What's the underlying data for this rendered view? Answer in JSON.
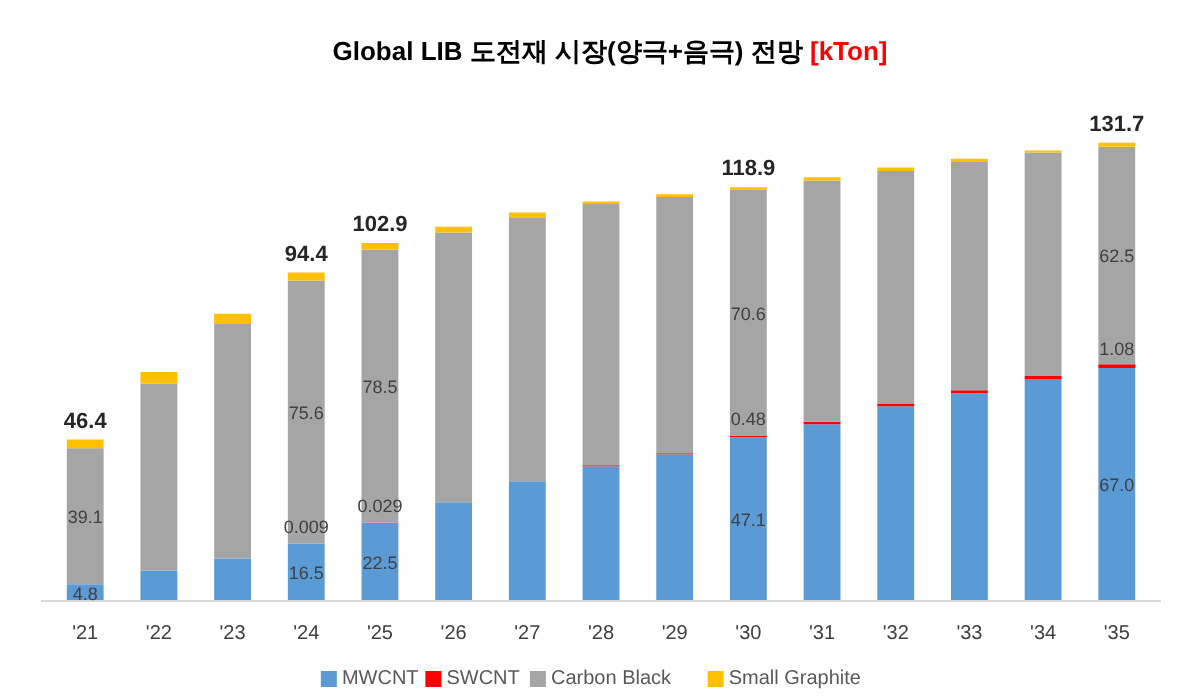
{
  "chart_data": {
    "type": "bar",
    "title": "Global LIB 도전재 시장(양극+음극) 전망",
    "subtitle": "[kTon]",
    "stacked": true,
    "legend": "bottom",
    "grid": false,
    "categories": [
      "'21",
      "'22",
      "'23",
      "'24",
      "'25",
      "'26",
      "'27",
      "'28",
      "'29",
      "'30",
      "'31",
      "'32",
      "'33",
      "'34",
      "'35"
    ],
    "series": [
      {
        "name": "MWCNT",
        "color": "#5b9bd5",
        "values": [
          4.8,
          8.7,
          12.2,
          16.5,
          22.5,
          28.4,
          34.4,
          38.7,
          42.2,
          47.1,
          50.8,
          56.0,
          59.7,
          63.7,
          67.0
        ],
        "value_labels": [
          "4.8",
          null,
          null,
          "16.5",
          "22.5",
          null,
          null,
          null,
          null,
          "47.1",
          null,
          null,
          null,
          null,
          "67.0"
        ]
      },
      {
        "name": "SWCNT",
        "color": "#ff0000",
        "values": [
          0,
          0,
          0,
          0.009,
          0.029,
          null,
          null,
          0.3,
          0.3,
          0.48,
          0.7,
          0.8,
          0.9,
          1.0,
          1.08
        ],
        "value_labels": [
          null,
          null,
          null,
          "0.009",
          "0.029",
          null,
          null,
          null,
          null,
          "0.48",
          null,
          null,
          null,
          null,
          "1.08"
        ]
      },
      {
        "name": "Carbon Black",
        "color": "#a5a5a5",
        "values": [
          39.1,
          53.8,
          67.4,
          75.6,
          78.5,
          77.5,
          75.9,
          75.1,
          73.6,
          70.6,
          69.4,
          66.8,
          65.6,
          64.2,
          62.5
        ],
        "value_labels": [
          "39.1",
          null,
          null,
          "75.6",
          "78.5",
          null,
          null,
          null,
          null,
          "70.6",
          null,
          null,
          null,
          null,
          "62.5"
        ]
      },
      {
        "name": "Small Graphite",
        "color": "#ffc000",
        "values": [
          2.5,
          3.3,
          3.0,
          2.3,
          1.9,
          1.7,
          1.4,
          0.7,
          0.8,
          0.72,
          0.9,
          1.0,
          0.9,
          0.6,
          1.12
        ]
      }
    ],
    "totals": [
      "46.4",
      null,
      null,
      "94.4",
      "102.9",
      null,
      null,
      null,
      null,
      "118.9",
      null,
      null,
      null,
      null,
      "131.7"
    ]
  }
}
